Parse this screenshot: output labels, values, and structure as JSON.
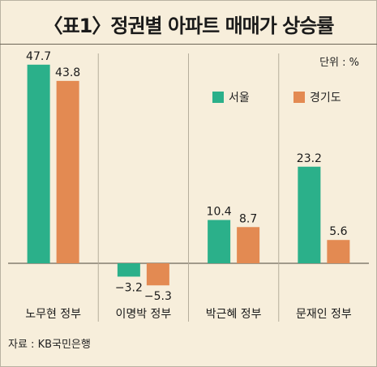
{
  "title": "〈표1〉정권별 아파트 매매가 상승률",
  "unit_label": "단위 : %",
  "source": "자료 : KB국민은행",
  "colors": {
    "seoul": "#2bb08a",
    "gyeonggi": "#e38a52",
    "background": "#f7eedb"
  },
  "chart_data": {
    "type": "bar",
    "title": "〈표1〉정권별 아파트 매매가 상승률",
    "xlabel": "",
    "ylabel": "",
    "categories": [
      "노무현 정부",
      "이명박 정부",
      "박근혜 정부",
      "문재인 정부"
    ],
    "series": [
      {
        "name": "서울",
        "values": [
          47.7,
          -3.2,
          10.4,
          23.2
        ]
      },
      {
        "name": "경기도",
        "values": [
          43.8,
          -5.3,
          8.7,
          5.6
        ]
      }
    ],
    "value_labels": [
      [
        "47.7",
        "−3.2",
        "10.4",
        "23.2"
      ],
      [
        "43.8",
        "−5.3",
        "8.7",
        "5.6"
      ]
    ],
    "ylim": [
      -6,
      50
    ],
    "grid": false,
    "legend_position": "top-right"
  }
}
